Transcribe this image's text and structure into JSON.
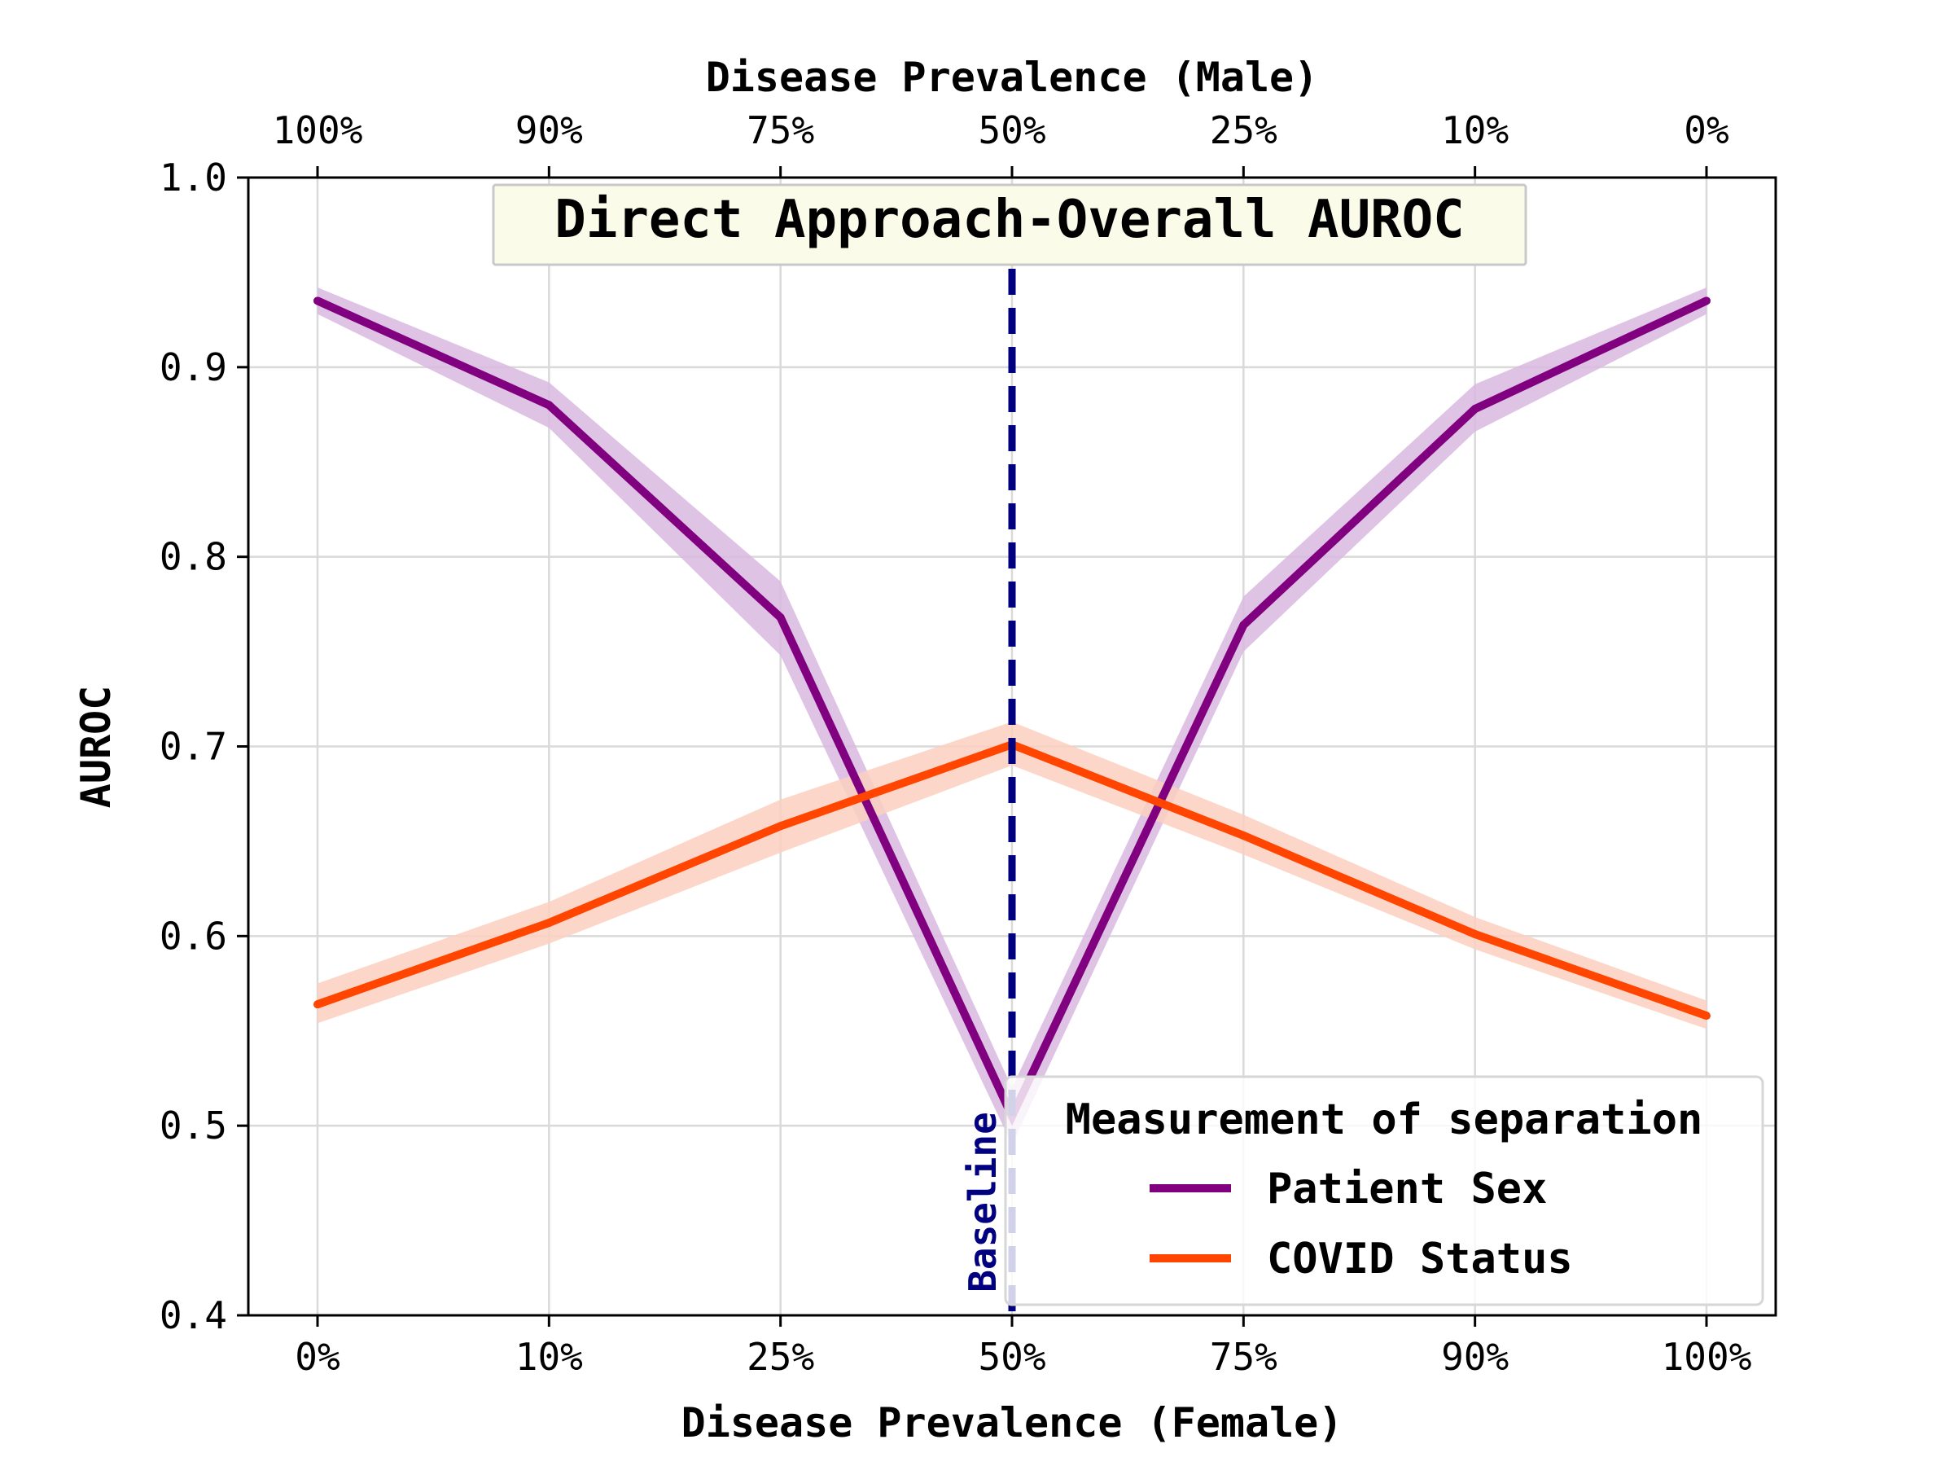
{
  "chart_data": {
    "type": "line",
    "title": "Direct Approach-Overall AUROC",
    "xlabel": "Disease Prevalence (Female)",
    "x2label": "Disease Prevalence (Male)",
    "ylabel": "AUROC",
    "categories": [
      "0%",
      "10%",
      "25%",
      "50%",
      "75%",
      "90%",
      "100%"
    ],
    "top_categories": [
      "100%",
      "90%",
      "75%",
      "50%",
      "25%",
      "10%",
      "0%"
    ],
    "ylim": [
      0.4,
      1.0
    ],
    "yticks": [
      "0.4",
      "0.5",
      "0.6",
      "0.7",
      "0.8",
      "0.9",
      "1.0"
    ],
    "grid": true,
    "series": [
      {
        "name": "Patient Sex",
        "color": "#800080",
        "band_color": "#d8b8df",
        "values": [
          0.935,
          0.88,
          0.768,
          0.505,
          0.764,
          0.878,
          0.935
        ],
        "lower": [
          0.928,
          0.868,
          0.748,
          0.49,
          0.75,
          0.866,
          0.928
        ],
        "upper": [
          0.942,
          0.892,
          0.787,
          0.52,
          0.779,
          0.891,
          0.942
        ]
      },
      {
        "name": "COVID Status",
        "color": "#ff4500",
        "band_color": "#fcd0c0",
        "values": [
          0.564,
          0.607,
          0.658,
          0.701,
          0.653,
          0.601,
          0.558
        ],
        "lower": [
          0.554,
          0.596,
          0.644,
          0.69,
          0.643,
          0.593,
          0.551
        ],
        "upper": [
          0.575,
          0.618,
          0.672,
          0.713,
          0.664,
          0.61,
          0.566
        ]
      }
    ],
    "baseline": {
      "label": "Baseline",
      "x": "50%",
      "color": "#000080"
    },
    "legend": {
      "title": "Measurement of separation",
      "position": "lower-right"
    }
  }
}
